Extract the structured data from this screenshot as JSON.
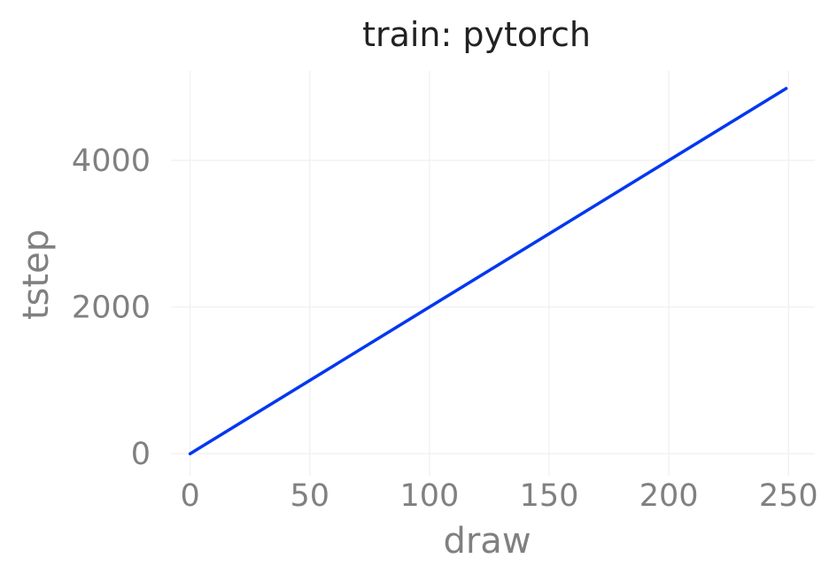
{
  "chart_data": {
    "type": "line",
    "title": "train: pytorch",
    "xlabel": "draw",
    "ylabel": "tstep",
    "xlim": [
      -8,
      261
    ],
    "ylim": [
      -300,
      5220
    ],
    "x_ticks": [
      0,
      50,
      100,
      150,
      200,
      250
    ],
    "x_tick_labels": [
      "0",
      "50",
      "100",
      "150",
      "200",
      "250"
    ],
    "y_ticks": [
      0,
      2000,
      4000
    ],
    "y_tick_labels": [
      "0",
      "2000",
      "4000"
    ],
    "grid": true,
    "legend": "none",
    "series": [
      {
        "color": "#0037f0",
        "x": [
          0,
          249
        ],
        "y": [
          0,
          4980
        ]
      }
    ]
  }
}
